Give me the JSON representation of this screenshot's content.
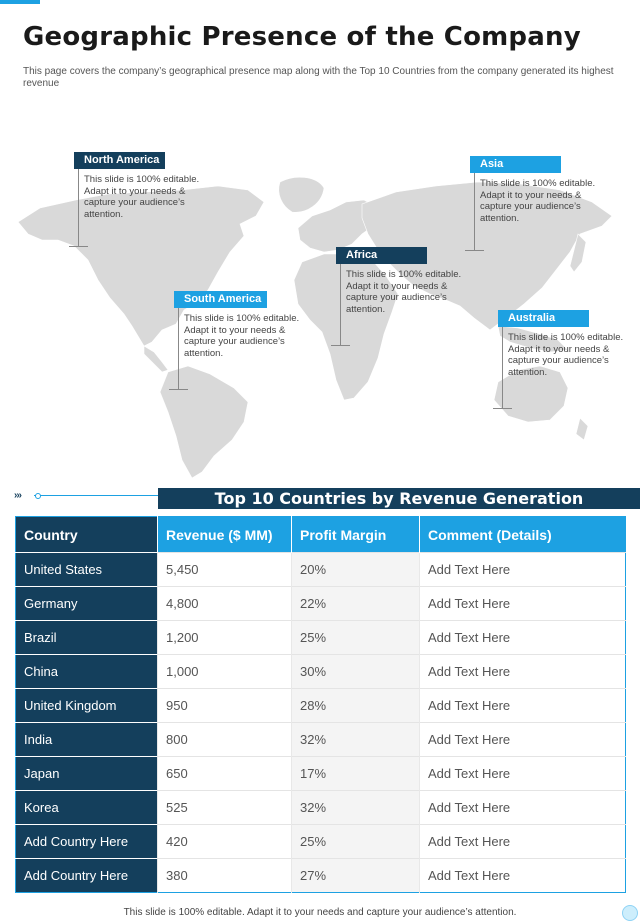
{
  "page": {
    "title": "Geographic Presence of the Company",
    "subtitle": "This page covers the company’s geographical presence map along with the Top 10 Countries from the company generated its highest revenue"
  },
  "colors": {
    "accent": "#1da1e2",
    "dark": "#143f5c",
    "map": "#d9d9d9"
  },
  "map": {
    "regions": [
      {
        "label": "North America",
        "desc": "This slide is 100% editable.  Adapt it to your needs & capture your audience’s attention."
      },
      {
        "label": "Asia",
        "desc": "This slide is 100% editable.  Adapt it to your needs & capture your audience’s attention."
      },
      {
        "label": "Africa",
        "desc": "This slide is 100% editable.  Adapt it to your needs & capture your audience’s attention."
      },
      {
        "label": "South America",
        "desc": "This slide is 100% editable.  Adapt it to your needs & capture your audience’s attention."
      },
      {
        "label": "Australia",
        "desc": "This slide is 100% editable.  Adapt it to your needs & capture your audience’s attention."
      }
    ]
  },
  "section": {
    "title": "Top 10 Countries by Revenue Generation",
    "decoration": "›››"
  },
  "table": {
    "headers": [
      "Country",
      "Revenue ($ MM)",
      "Profit Margin",
      "Comment (Details)"
    ],
    "rows": [
      [
        "United States",
        "5,450",
        "20%",
        "Add Text Here"
      ],
      [
        "Germany",
        "4,800",
        "22%",
        "Add Text Here"
      ],
      [
        "Brazil",
        "1,200",
        "25%",
        "Add Text Here"
      ],
      [
        "China",
        "1,000",
        "30%",
        "Add Text Here"
      ],
      [
        "United Kingdom",
        "950",
        "28%",
        "Add Text Here"
      ],
      [
        "India",
        "800",
        "32%",
        "Add Text Here"
      ],
      [
        "Japan",
        "650",
        "17%",
        "Add Text Here"
      ],
      [
        "Korea",
        "525",
        "32%",
        "Add Text Here"
      ],
      [
        "Add Country Here",
        "420",
        "25%",
        "Add Text Here"
      ],
      [
        "Add Country Here",
        "380",
        "27%",
        "Add Text Here"
      ]
    ]
  },
  "footer": {
    "text": "This slide is 100% editable. Adapt it to your needs and capture your audience’s attention."
  }
}
